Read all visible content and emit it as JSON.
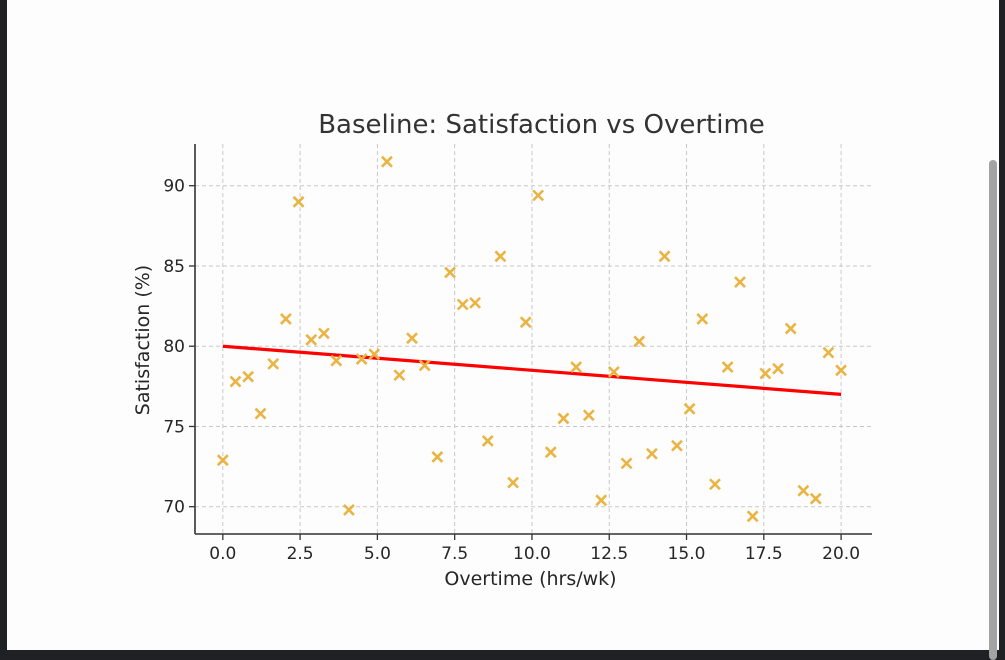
{
  "window": {
    "scrollbar": "vertical"
  },
  "chart_data": {
    "type": "scatter",
    "title": "Baseline: Satisfaction vs Overtime",
    "xlabel": "Overtime (hrs/wk)",
    "ylabel": "Satisfaction (%)",
    "xlim": [
      -0.9,
      21.0
    ],
    "ylim": [
      68.3,
      92.6
    ],
    "xticks": [
      0.0,
      2.5,
      5.0,
      7.5,
      10.0,
      12.5,
      15.0,
      17.5,
      20.0
    ],
    "xtick_labels": [
      "0.0",
      "2.5",
      "5.0",
      "7.5",
      "10.0",
      "12.5",
      "15.0",
      "17.5",
      "20.0"
    ],
    "yticks": [
      70,
      75,
      80,
      85,
      90
    ],
    "ytick_labels": [
      "70",
      "75",
      "80",
      "85",
      "90"
    ],
    "grid": true,
    "legend": "none",
    "colors": {
      "marker": "#E9B443",
      "trend_line": "#FF0000"
    },
    "series": [
      {
        "name": "observations",
        "marker": "x",
        "x": [
          0.0,
          0.41,
          0.82,
          1.22,
          1.63,
          2.04,
          2.45,
          2.86,
          3.27,
          3.67,
          4.08,
          4.49,
          4.9,
          5.31,
          5.71,
          6.12,
          6.53,
          6.94,
          7.35,
          7.76,
          8.16,
          8.57,
          8.98,
          9.39,
          9.8,
          10.2,
          10.61,
          11.02,
          11.43,
          11.84,
          12.24,
          12.65,
          13.06,
          13.47,
          13.88,
          14.29,
          14.69,
          15.1,
          15.51,
          15.92,
          16.33,
          16.73,
          17.14,
          17.55,
          17.96,
          18.37,
          18.78,
          19.18,
          19.59,
          20.0
        ],
        "y": [
          72.9,
          77.8,
          78.1,
          75.8,
          78.9,
          81.7,
          89.0,
          80.4,
          80.8,
          79.1,
          69.8,
          79.2,
          79.5,
          91.5,
          78.2,
          80.5,
          78.8,
          73.1,
          84.6,
          82.6,
          82.7,
          74.1,
          85.6,
          71.5,
          81.5,
          89.4,
          73.4,
          75.5,
          78.7,
          75.7,
          70.4,
          78.4,
          72.7,
          80.3,
          73.3,
          85.6,
          73.8,
          76.1,
          81.7,
          71.4,
          78.7,
          84.0,
          69.4,
          78.3,
          78.6,
          81.1,
          71.0,
          70.5,
          79.6,
          78.5
        ]
      },
      {
        "name": "trend",
        "type": "line",
        "x": [
          0.0,
          20.0
        ],
        "y": [
          80.0,
          77.0
        ]
      }
    ]
  }
}
